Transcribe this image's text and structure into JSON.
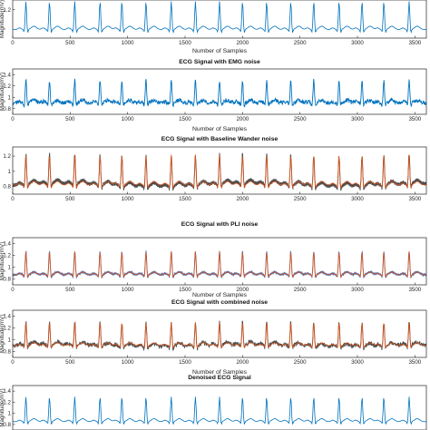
{
  "chart_data": [
    {
      "type": "line",
      "title": "",
      "xlabel": "Number of Samples",
      "ylabel": "Magnitude(mV)",
      "xlim": [
        0,
        3600
      ],
      "xticks": [
        0,
        500,
        1000,
        1500,
        2000,
        2500,
        3000,
        3500
      ],
      "yticks": [
        1.2,
        1.4
      ],
      "ylim": [
        0.7,
        1.5
      ],
      "series": [
        {
          "color": "#0072bd",
          "base": 0.85,
          "peak": 1.35,
          "noise": 0.0,
          "wander": 0.0,
          "pli": 0.0
        }
      ]
    },
    {
      "type": "line",
      "title": "ECG Signal with EMG noise",
      "xlabel": "Number of Samples",
      "ylabel": "Magnitude(mV)",
      "xlim": [
        0,
        3600
      ],
      "xticks": [
        0,
        500,
        1000,
        1500,
        2000,
        2500,
        3000,
        3500
      ],
      "yticks": [
        0.8,
        1,
        1.2,
        1.4
      ],
      "ylim": [
        0.7,
        1.5
      ],
      "series": [
        {
          "color": "#0072bd",
          "base": 0.9,
          "peak": 1.3,
          "noise": 0.035,
          "wander": 0.0,
          "pli": 0.0
        }
      ]
    },
    {
      "type": "line",
      "title": "ECG Signal with Baseline Wander noise",
      "xlabel": "",
      "ylabel": "",
      "xlim": [
        0,
        3600
      ],
      "xticks": [
        0,
        500,
        1000,
        1500,
        2000,
        2500,
        3000,
        3500
      ],
      "yticks": [
        0.8,
        1,
        1.2
      ],
      "ylim": [
        0.7,
        1.32
      ],
      "series": [
        {
          "color": "#4d4d4d",
          "base": 0.82,
          "peak": 1.22,
          "noise": 0.0,
          "wander": 0.02,
          "pli": 0.025
        },
        {
          "color": "#d95319",
          "base": 0.82,
          "peak": 1.22,
          "noise": 0.0,
          "wander": 0.0,
          "pli": 0.0
        }
      ]
    },
    {
      "type": "line",
      "title": "ECG Signal with PLI noise",
      "xlabel": "Number of Samples",
      "ylabel": "Magnitude(mV)",
      "xlim": [
        0,
        3600
      ],
      "xticks": [
        0,
        500,
        1000,
        1500,
        2000,
        2500,
        3000,
        3500
      ],
      "yticks": [
        0.8,
        1,
        1.2,
        1.4
      ],
      "ylim": [
        0.7,
        1.5
      ],
      "series": [
        {
          "color": "#4a6fb5",
          "base": 0.87,
          "peak": 1.27,
          "noise": 0.0,
          "wander": 0.0,
          "pli": 0.018
        },
        {
          "color": "#d95319",
          "base": 0.87,
          "peak": 1.27,
          "noise": 0.0,
          "wander": 0.0,
          "pli": 0.0
        }
      ]
    },
    {
      "type": "line",
      "title": "ECG Signal with combined noise",
      "xlabel": "Number of Samples",
      "ylabel": "Magnitude(mV)",
      "xlim": [
        0,
        3600
      ],
      "xticks": [
        0,
        500,
        1000,
        1500,
        2000,
        2500,
        3000,
        3500
      ],
      "yticks": [
        0.8,
        1,
        1.2,
        1.4
      ],
      "ylim": [
        0.7,
        1.5
      ],
      "series": [
        {
          "color": "#4d4d4d",
          "base": 0.9,
          "peak": 1.3,
          "noise": 0.025,
          "wander": 0.015,
          "pli": 0.02
        },
        {
          "color": "#d95319",
          "base": 0.9,
          "peak": 1.3,
          "noise": 0.0,
          "wander": 0.0,
          "pli": 0.0
        }
      ]
    },
    {
      "type": "line",
      "title": "Denoised ECG Signal",
      "xlabel": "",
      "ylabel": "Magnitude(mV)",
      "xlim": [
        0,
        3600
      ],
      "xticks": [],
      "yticks": [
        0.8,
        1,
        1.2,
        1.4
      ],
      "ylim": [
        0.7,
        1.5
      ],
      "series": [
        {
          "color": "#0072bd",
          "base": 0.85,
          "peak": 1.3,
          "noise": 0.0,
          "wander": 0.0,
          "pli": 0.0
        }
      ]
    }
  ],
  "beat_positions": [
    115,
    320,
    540,
    760,
    950,
    1160,
    1380,
    1590,
    1800,
    2000,
    2210,
    2420,
    2620,
    2840,
    3040,
    3230,
    3450
  ]
}
